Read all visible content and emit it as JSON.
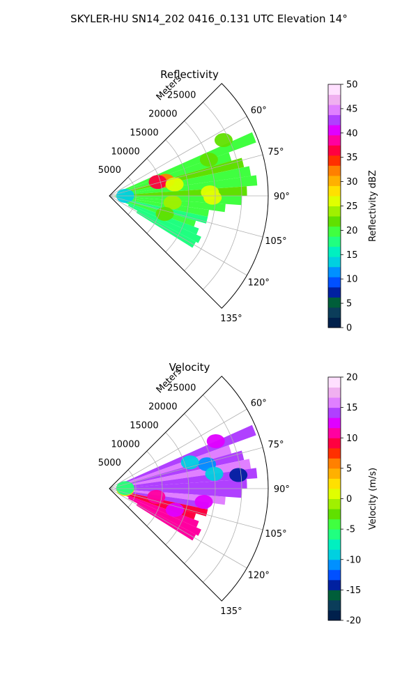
{
  "figure": {
    "title": "SKYLER-HU  SN14_202  0416_0.131 UTC Elevation 14°"
  },
  "chart_data": [
    {
      "type": "heatmap",
      "title": "Reflectivity",
      "projection": "polar sector",
      "range_label": "Meters",
      "range_ticks": [
        "5000",
        "10000",
        "15000",
        "20000",
        "25000"
      ],
      "range_values": [
        5000,
        10000,
        15000,
        20000,
        25000
      ],
      "range_max": 30000,
      "azimuth_ticks": [
        "60°",
        "75°",
        "90°",
        "105°",
        "120°",
        "135°"
      ],
      "azimuth_values": [
        60,
        75,
        90,
        105,
        120,
        135
      ],
      "azimuth_range": [
        45,
        135
      ],
      "grid": true,
      "colorbar": {
        "label": "Reflectivity dBZ",
        "ticks": [
          "0",
          "5",
          "10",
          "15",
          "20",
          "25",
          "30",
          "35",
          "40",
          "45",
          "50"
        ],
        "range": [
          0,
          50
        ],
        "colors": [
          "#00204c",
          "#0b3d5a",
          "#005e3a",
          "#0020a0",
          "#0050ff",
          "#0090ff",
          "#00d0e0",
          "#00f0c0",
          "#20ff80",
          "#40ff40",
          "#60e000",
          "#a0f000",
          "#e0ff00",
          "#ffe000",
          "#ffb000",
          "#ff8000",
          "#ff3000",
          "#ff0040",
          "#ff00a0",
          "#e000ff",
          "#b040ff",
          "#e080ff",
          "#f0b0f0",
          "#ffe0ff"
        ]
      },
      "echoes": [
        {
          "az": 68,
          "r1": 2000,
          "r2": 29500,
          "v": 20
        },
        {
          "az": 72,
          "r1": 3000,
          "r2": 24000,
          "v": 19
        },
        {
          "az": 76,
          "r1": 2500,
          "r2": 26000,
          "v": 21
        },
        {
          "az": 80,
          "r1": 3000,
          "r2": 27000,
          "v": 19
        },
        {
          "az": 84,
          "r1": 1500,
          "r2": 28000,
          "v": 20
        },
        {
          "az": 88,
          "r1": 1000,
          "r2": 26000,
          "v": 21
        },
        {
          "az": 92,
          "r1": 1000,
          "r2": 25000,
          "v": 19
        },
        {
          "az": 96,
          "r1": 1000,
          "r2": 22000,
          "v": 20
        },
        {
          "az": 100,
          "r1": 2000,
          "r2": 19000,
          "v": 19
        },
        {
          "az": 104,
          "r1": 3000,
          "r2": 19000,
          "v": 18
        },
        {
          "az": 108,
          "r1": 3000,
          "r2": 17000,
          "v": 19
        },
        {
          "az": 112,
          "r1": 3000,
          "r2": 18000,
          "v": 18
        },
        {
          "az": 116,
          "r1": 4000,
          "r2": 19000,
          "v": 17
        },
        {
          "az": 120,
          "r1": 6000,
          "r2": 18500,
          "v": 17
        }
      ],
      "cells": [
        {
          "az": 75,
          "r": 11000,
          "v": 33
        },
        {
          "az": 74,
          "r": 9500,
          "v": 37
        },
        {
          "az": 80,
          "r": 12500,
          "v": 27
        },
        {
          "az": 91,
          "r": 19500,
          "v": 27
        },
        {
          "az": 88,
          "r": 19000,
          "v": 26
        },
        {
          "az": 96,
          "r": 12000,
          "v": 24
        },
        {
          "az": 108,
          "r": 11000,
          "v": 22
        },
        {
          "az": 70,
          "r": 20000,
          "v": 22
        },
        {
          "az": 64,
          "r": 24000,
          "v": 22
        },
        {
          "az": 90,
          "r": 3000,
          "v": 14
        }
      ]
    },
    {
      "type": "heatmap",
      "title": "Velocity",
      "projection": "polar sector",
      "range_label": "Meters",
      "range_ticks": [
        "5000",
        "10000",
        "15000",
        "20000",
        "25000"
      ],
      "range_values": [
        5000,
        10000,
        15000,
        20000,
        25000
      ],
      "range_max": 30000,
      "azimuth_ticks": [
        "60°",
        "75°",
        "90°",
        "105°",
        "120°",
        "135°"
      ],
      "azimuth_values": [
        60,
        75,
        90,
        105,
        120,
        135
      ],
      "azimuth_range": [
        45,
        135
      ],
      "grid": true,
      "colorbar": {
        "label": "Velocity (m/s)",
        "ticks": [
          "-20",
          "-15",
          "-10",
          "-5",
          "0",
          "5",
          "10",
          "15",
          "20"
        ],
        "range": [
          -20,
          20
        ],
        "colors": [
          "#00204c",
          "#0b3d5a",
          "#005e3a",
          "#0020a0",
          "#0050ff",
          "#0090ff",
          "#00d0e0",
          "#00f0c0",
          "#20ff80",
          "#40ff40",
          "#60e000",
          "#a0f000",
          "#e0ff00",
          "#ffe000",
          "#ffb000",
          "#ff8000",
          "#ff3000",
          "#ff0040",
          "#ff00a0",
          "#e000ff",
          "#b040ff",
          "#e080ff",
          "#f0b0f0",
          "#ffe0ff"
        ]
      },
      "echoes": [
        {
          "az": 68,
          "r1": 2000,
          "r2": 29500,
          "v": 14
        },
        {
          "az": 72,
          "r1": 3000,
          "r2": 24000,
          "v": 15
        },
        {
          "az": 76,
          "r1": 2500,
          "r2": 26000,
          "v": 14
        },
        {
          "az": 80,
          "r1": 3000,
          "r2": 27000,
          "v": 15
        },
        {
          "az": 84,
          "r1": 1500,
          "r2": 28000,
          "v": 14
        },
        {
          "az": 88,
          "r1": 1000,
          "r2": 26000,
          "v": 14
        },
        {
          "az": 92,
          "r1": 1000,
          "r2": 25000,
          "v": 14
        },
        {
          "az": 96,
          "r1": 1000,
          "r2": 22000,
          "v": 15
        },
        {
          "az": 100,
          "r1": 2000,
          "r2": 19000,
          "v": 14
        },
        {
          "az": 104,
          "r1": 3000,
          "r2": 19000,
          "v": 9
        },
        {
          "az": 108,
          "r1": 3000,
          "r2": 17000,
          "v": 9
        },
        {
          "az": 112,
          "r1": 3000,
          "r2": 18000,
          "v": 10
        },
        {
          "az": 116,
          "r1": 4000,
          "r2": 19000,
          "v": 10
        },
        {
          "az": 120,
          "r1": 6000,
          "r2": 18500,
          "v": 11
        }
      ],
      "cells": [
        {
          "az": 76,
          "r": 19000,
          "v": -11
        },
        {
          "az": 82,
          "r": 20000,
          "v": -10
        },
        {
          "az": 84,
          "r": 24500,
          "v": -14
        },
        {
          "az": 72,
          "r": 16000,
          "v": -10
        },
        {
          "az": 66,
          "r": 22000,
          "v": 12
        },
        {
          "az": 100,
          "r": 9000,
          "v": 10
        },
        {
          "az": 92,
          "r": 3000,
          "v": 2
        },
        {
          "az": 88,
          "r": 3000,
          "v": -6
        },
        {
          "az": 108,
          "r": 13000,
          "v": 13
        },
        {
          "az": 98,
          "r": 18000,
          "v": 13
        }
      ]
    }
  ]
}
